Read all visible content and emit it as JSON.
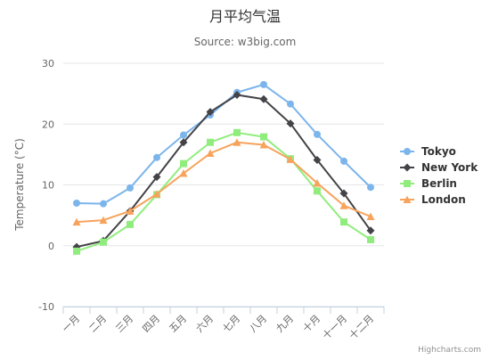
{
  "chart_data": {
    "type": "line",
    "title": "月平均气温",
    "subtitle": "Source: w3big.com",
    "ylabel": "Temperature (°C)",
    "xlabel": "",
    "ylim": [
      -10,
      30
    ],
    "yticks": [
      -10,
      0,
      10,
      20,
      30
    ],
    "grid": true,
    "legend_position": "right-middle",
    "categories": [
      "一月",
      "二月",
      "三月",
      "四月",
      "五月",
      "六月",
      "七月",
      "八月",
      "九月",
      "十月",
      "十一月",
      "十二月"
    ],
    "series": [
      {
        "name": "Tokyo",
        "color": "#7cb5ec",
        "marker": "circle",
        "values": [
          7.0,
          6.9,
          9.5,
          14.5,
          18.2,
          21.5,
          25.2,
          26.5,
          23.3,
          18.3,
          13.9,
          9.6
        ]
      },
      {
        "name": "New York",
        "color": "#434348",
        "marker": "diamond",
        "values": [
          -0.2,
          0.8,
          5.7,
          11.3,
          17.0,
          22.0,
          24.8,
          24.1,
          20.1,
          14.1,
          8.6,
          2.5
        ]
      },
      {
        "name": "Berlin",
        "color": "#90ed7d",
        "marker": "square",
        "values": [
          -0.9,
          0.6,
          3.5,
          8.4,
          13.5,
          17.0,
          18.6,
          17.9,
          14.3,
          9.0,
          3.9,
          1.0
        ]
      },
      {
        "name": "London",
        "color": "#f7a35c",
        "marker": "triangle",
        "values": [
          3.9,
          4.2,
          5.7,
          8.5,
          11.9,
          15.2,
          17.0,
          16.6,
          14.2,
          10.3,
          6.6,
          4.8
        ]
      }
    ]
  },
  "credits": "Highcharts.com"
}
